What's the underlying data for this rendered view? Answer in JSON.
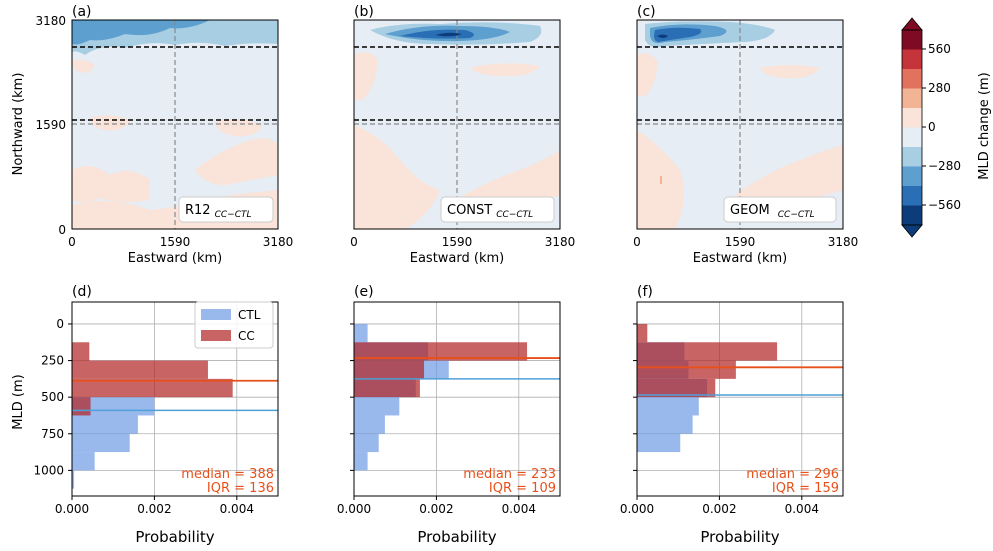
{
  "colors": {
    "ctl": "#6e9be6",
    "cc": "#b22222",
    "ctl_median": "#4f9fd8",
    "cc_median": "#e8501b",
    "land_neutral": "#e6edf4",
    "positive_light": "#fae3d8"
  },
  "maps": {
    "xlabel": "Eastward (km)",
    "ylabel": "Northward (km)",
    "x_ticks": [
      "0",
      "1590",
      "3180"
    ],
    "y_ticks": [
      "0",
      "1590",
      "3180"
    ],
    "panels": [
      {
        "label": "(a)",
        "run_name": "R12",
        "run_sub": "CC−CTL"
      },
      {
        "label": "(b)",
        "run_name": "CONST",
        "run_sub": "CC−CTL"
      },
      {
        "label": "(c)",
        "run_name": "GEOM",
        "run_sub": "CC−CTL"
      }
    ]
  },
  "colorbar": {
    "label": "MLD change (m)",
    "ticks": [
      "560",
      "280",
      "0",
      "−280",
      "−560"
    ],
    "levels": [
      -700,
      -560,
      -420,
      -280,
      -140,
      0,
      140,
      280,
      420,
      560,
      700
    ],
    "colors": [
      "#0c3d7a",
      "#2a6fb5",
      "#5d9fce",
      "#a8cee3",
      "#e6edf4",
      "#fae3d8",
      "#f2b495",
      "#e2725d",
      "#c4343a",
      "#7f0a23"
    ]
  },
  "hists": {
    "xlabel": "Probability",
    "ylabel": "MLD (m)",
    "x_ticks": [
      "0.000",
      "0.002",
      "0.004"
    ],
    "y_ticks": [
      "0",
      "250",
      "500",
      "750",
      "1000"
    ],
    "legend": {
      "ctl": "CTL",
      "cc": "CC"
    }
  },
  "chart_data": [
    {
      "type": "bar",
      "panel": "(d)",
      "bin_edges": [
        0,
        125,
        250,
        375,
        500,
        625,
        750,
        875,
        1000,
        1125,
        1175
      ],
      "series": [
        {
          "name": "CTL",
          "values": [
            0,
            0,
            0,
            0,
            0.002,
            0.0016,
            0.0014,
            0.00055,
            5e-05,
            1e-05
          ]
        },
        {
          "name": "CC",
          "values": [
            0,
            0.00042,
            0.0033,
            0.0039,
            0.00045,
            0,
            0,
            0,
            0,
            0
          ]
        }
      ],
      "median_ctl": 590,
      "median_cc": 388,
      "median_label": "median = 388",
      "iqr_label": "IQR = 136",
      "xlim": [
        0,
        0.005
      ],
      "ylim": [
        1175,
        -150
      ]
    },
    {
      "type": "bar",
      "panel": "(e)",
      "bin_edges": [
        0,
        125,
        250,
        375,
        500,
        625,
        750,
        875,
        1000,
        1125,
        1175
      ],
      "series": [
        {
          "name": "CTL",
          "values": [
            0.00033,
            0.0018,
            0.0023,
            0.0015,
            0.0011,
            0.00075,
            0.0006,
            0.00033,
            0,
            0
          ]
        },
        {
          "name": "CC",
          "values": [
            0,
            0.0042,
            0.0017,
            0.0016,
            0,
            0,
            0,
            0,
            0,
            0
          ]
        }
      ],
      "median_ctl": 375,
      "median_cc": 233,
      "median_label": "median = 233",
      "iqr_label": "IQR = 109",
      "xlim": [
        0,
        0.005
      ],
      "ylim": [
        1175,
        -150
      ]
    },
    {
      "type": "bar",
      "panel": "(f)",
      "bin_edges": [
        0,
        125,
        250,
        375,
        500,
        625,
        750,
        875,
        1000,
        1125,
        1175
      ],
      "series": [
        {
          "name": "CTL",
          "values": [
            0,
            0.00115,
            0.00125,
            0.0017,
            0.0015,
            0.00135,
            0.00105,
            0,
            0,
            0
          ]
        },
        {
          "name": "CC",
          "values": [
            0.00025,
            0.0034,
            0.0024,
            0.0019,
            0,
            0,
            0,
            0,
            0,
            0
          ]
        }
      ],
      "median_ctl": 485,
      "median_cc": 296,
      "median_label": "median = 296",
      "iqr_label": "IQR = 159",
      "xlim": [
        0,
        0.005
      ],
      "ylim": [
        1175,
        -150
      ]
    }
  ]
}
